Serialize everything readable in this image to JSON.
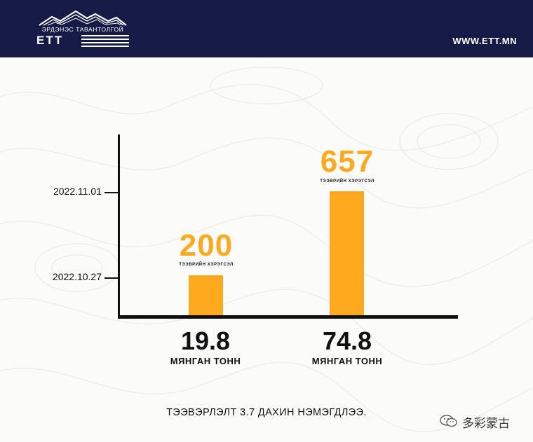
{
  "header": {
    "logo_top": "ЭРДЭНЭС ТАВАНТОЛГОЙ",
    "logo_main": "ЕТТ",
    "site_url": "WWW.ETT.MN",
    "icon": "mountain-logo-icon"
  },
  "colors": {
    "header_bg": "#151b45",
    "bar": "#ffa91f",
    "text": "#111111"
  },
  "chart_data": {
    "type": "bar",
    "y_tick_labels": [
      "2022.11.01",
      "2022.10.27"
    ],
    "categories": [
      "19.8",
      "74.8"
    ],
    "category_units": [
      "МЯНГАН ТОНН",
      "МЯНГАН ТОНН"
    ],
    "values": [
      200,
      657
    ],
    "value_captions": [
      "ТЭЭВРИЙН ХЭРЭГСЭЛ",
      "ТЭЭВРИЙН ХЭРЭГСЭЛ"
    ]
  },
  "footer": {
    "caption": "ТЭЭВЭРЛЭЛТ 3.7 ДАХИН НЭМЭГДЛЭЭ."
  },
  "watermark": {
    "text": "多彩蒙古",
    "icon": "wechat-icon"
  }
}
